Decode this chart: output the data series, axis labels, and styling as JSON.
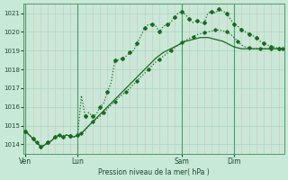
{
  "background_color": "#c8e8d8",
  "grid_major_color": "#aad4c4",
  "grid_minor_color": "#f0c8c8",
  "line_color": "#1a6a20",
  "title": "Pression niveau de la mer( hPa )",
  "ylim": [
    1013.5,
    1021.5
  ],
  "yticks": [
    1014,
    1015,
    1016,
    1017,
    1018,
    1019,
    1020,
    1021
  ],
  "day_labels": [
    "Ven",
    "Lun",
    "Sam",
    "Dim"
  ],
  "day_positions": [
    0,
    14,
    42,
    56
  ],
  "total_points": 70,
  "series1_x": [
    0,
    1,
    2,
    3,
    4,
    5,
    6,
    7,
    8,
    9,
    10,
    11,
    12,
    13,
    14,
    15,
    16,
    17,
    18,
    19,
    20,
    21,
    22,
    23,
    24,
    25,
    26,
    27,
    28,
    29,
    30,
    31,
    32,
    33,
    34,
    35,
    36,
    37,
    38,
    39,
    40,
    41,
    42,
    43,
    44,
    45,
    46,
    47,
    48,
    49,
    50,
    51,
    52,
    53,
    54,
    55,
    56,
    57,
    58,
    59,
    60,
    61,
    62,
    63,
    64,
    65,
    66,
    67,
    68,
    69
  ],
  "series1_y": [
    1014.7,
    1014.5,
    1014.3,
    1014.1,
    1013.9,
    1013.95,
    1014.1,
    1014.2,
    1014.4,
    1014.5,
    1014.4,
    1014.5,
    1014.45,
    1014.4,
    1014.5,
    1016.6,
    1015.5,
    1015.7,
    1015.5,
    1015.6,
    1016.0,
    1016.2,
    1016.8,
    1017.3,
    1018.5,
    1018.5,
    1018.6,
    1018.7,
    1018.9,
    1019.0,
    1019.4,
    1019.8,
    1020.2,
    1020.4,
    1020.4,
    1020.3,
    1020.0,
    1020.3,
    1020.4,
    1020.5,
    1020.8,
    1021.0,
    1021.1,
    1020.9,
    1020.7,
    1020.5,
    1020.6,
    1020.5,
    1020.5,
    1021.0,
    1021.1,
    1021.0,
    1021.2,
    1021.1,
    1021.0,
    1020.7,
    1020.4,
    1020.3,
    1020.1,
    1020.0,
    1019.9,
    1019.8,
    1019.7,
    1019.5,
    1019.4,
    1019.3,
    1019.2,
    1019.2,
    1019.1,
    1019.1
  ],
  "series2_y": [
    1014.7,
    1014.5,
    1014.3,
    1014.1,
    1013.9,
    1013.95,
    1014.1,
    1014.2,
    1014.4,
    1014.5,
    1014.4,
    1014.5,
    1014.45,
    1014.4,
    1014.5,
    1014.6,
    1014.75,
    1015.0,
    1015.2,
    1015.35,
    1015.5,
    1015.7,
    1015.9,
    1016.1,
    1016.3,
    1016.5,
    1016.65,
    1016.8,
    1017.0,
    1017.2,
    1017.4,
    1017.6,
    1017.8,
    1018.0,
    1018.2,
    1018.4,
    1018.55,
    1018.7,
    1018.85,
    1019.0,
    1019.15,
    1019.3,
    1019.45,
    1019.55,
    1019.65,
    1019.75,
    1019.85,
    1019.9,
    1019.95,
    1020.0,
    1020.05,
    1020.1,
    1020.1,
    1020.05,
    1020.0,
    1019.9,
    1019.7,
    1019.5,
    1019.3,
    1019.2,
    1019.15,
    1019.1,
    1019.1,
    1019.1,
    1019.1,
    1019.1,
    1019.1,
    1019.1,
    1019.1,
    1019.1
  ],
  "series3_y": [
    1014.7,
    1014.5,
    1014.3,
    1014.1,
    1013.9,
    1013.95,
    1014.1,
    1014.2,
    1014.4,
    1014.5,
    1014.4,
    1014.5,
    1014.45,
    1014.4,
    1014.5,
    1014.6,
    1014.8,
    1015.0,
    1015.2,
    1015.4,
    1015.6,
    1015.8,
    1016.0,
    1016.2,
    1016.4,
    1016.6,
    1016.8,
    1017.0,
    1017.2,
    1017.4,
    1017.6,
    1017.8,
    1018.0,
    1018.2,
    1018.4,
    1018.6,
    1018.75,
    1018.9,
    1019.0,
    1019.1,
    1019.2,
    1019.3,
    1019.4,
    1019.5,
    1019.55,
    1019.6,
    1019.65,
    1019.7,
    1019.7,
    1019.7,
    1019.65,
    1019.6,
    1019.55,
    1019.5,
    1019.4,
    1019.3,
    1019.2,
    1019.15,
    1019.1,
    1019.1,
    1019.1,
    1019.1,
    1019.1,
    1019.1,
    1019.1,
    1019.1,
    1019.1,
    1019.1,
    1019.1,
    1019.1
  ]
}
